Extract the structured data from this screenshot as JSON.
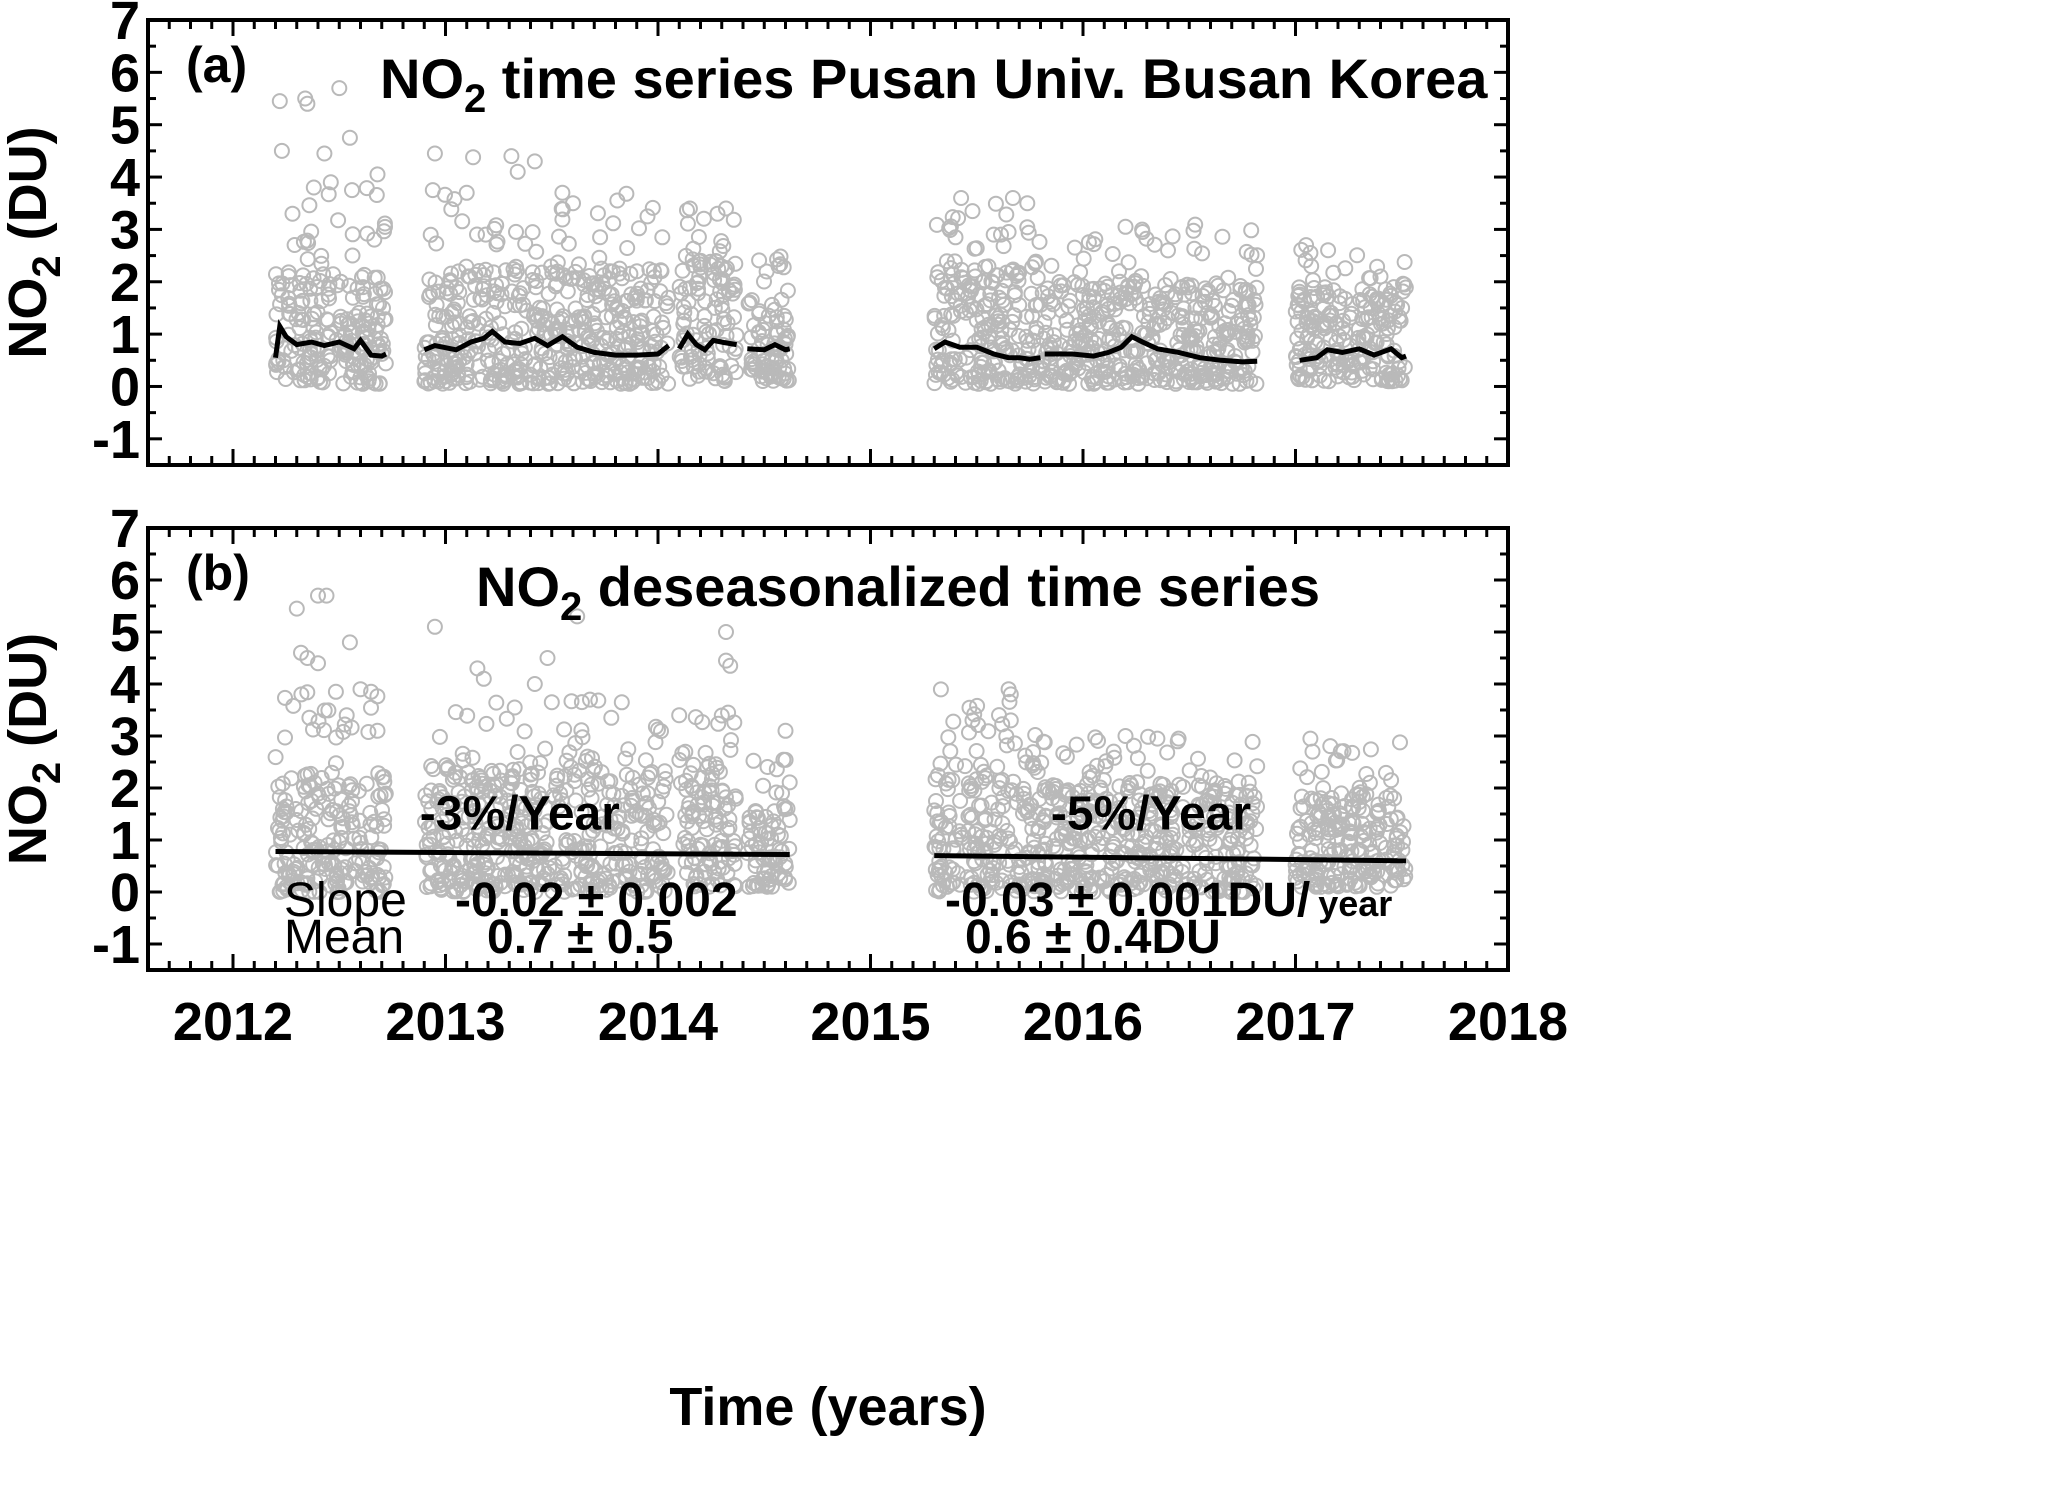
{
  "chart_data": [
    {
      "type": "scatter",
      "panel_tag": "(a)",
      "title": "NO",
      "title_sub": "2",
      "title_rest": " time series Pusan Univ.  Busan Korea",
      "ylabel": "NO",
      "ylabel_sub": "2",
      "ylabel_rest": " (DU)",
      "xlabel": "",
      "ylim": [
        -1.5,
        7
      ],
      "xlim": [
        2011.6,
        2018
      ],
      "yticks": [
        "-1",
        "0",
        "1",
        "2",
        "3",
        "4",
        "5",
        "6",
        "7"
      ],
      "xticks": [],
      "grid": false,
      "series": [
        {
          "color": "#b9b9b9",
          "marker": "open-circle",
          "segments": [
            {
              "start": 2012.2,
              "end": 2012.72,
              "low": 0.05,
              "typical": 2.2,
              "high": 3.8
            },
            {
              "start": 2012.9,
              "end": 2014.05,
              "low": 0.05,
              "typical": 2.3,
              "high": 3.7
            },
            {
              "start": 2014.1,
              "end": 2014.37,
              "low": 0.1,
              "typical": 2.4,
              "high": 3.4
            },
            {
              "start": 2014.42,
              "end": 2014.62,
              "low": 0.1,
              "typical": 1.7,
              "high": 2.5
            },
            {
              "start": 2015.3,
              "end": 2015.8,
              "low": 0.05,
              "typical": 2.3,
              "high": 3.6
            },
            {
              "start": 2015.8,
              "end": 2016.82,
              "low": 0.05,
              "typical": 2.0,
              "high": 3.1
            },
            {
              "start": 2017.0,
              "end": 2017.52,
              "low": 0.1,
              "typical": 1.9,
              "high": 2.7
            }
          ],
          "outliers": [
            [
              2012.22,
              5.45
            ],
            [
              2012.23,
              4.5
            ],
            [
              2012.34,
              5.5
            ],
            [
              2012.35,
              5.4
            ],
            [
              2012.43,
              4.45
            ],
            [
              2012.5,
              5.7
            ],
            [
              2012.55,
              4.75
            ],
            [
              2012.28,
              3.3
            ],
            [
              2012.38,
              3.8
            ],
            [
              2012.46,
              3.9
            ],
            [
              2012.56,
              3.75
            ],
            [
              2012.68,
              4.05
            ],
            [
              2012.95,
              4.45
            ],
            [
              2012.94,
              3.75
            ],
            [
              2013.1,
              3.7
            ],
            [
              2013.13,
              4.38
            ],
            [
              2013.31,
              4.4
            ],
            [
              2013.34,
              4.1
            ],
            [
              2013.42,
              4.3
            ],
            [
              2013.55,
              3.7
            ],
            [
              2013.6,
              3.5
            ],
            [
              2014.15,
              3.4
            ],
            [
              2014.32,
              3.4
            ],
            [
              2015.48,
              3.35
            ],
            [
              2015.67,
              3.6
            ],
            [
              2015.4,
              2.85
            ],
            [
              2015.58,
              2.9
            ],
            [
              2015.65,
              2.95
            ],
            [
              2016.2,
              3.05
            ],
            [
              2016.28,
              2.95
            ],
            [
              2016.4,
              2.6
            ],
            [
              2016.78,
              1.55
            ],
            [
              2017.05,
              2.7
            ],
            [
              2017.07,
              2.55
            ],
            [
              2017.4,
              2.1
            ],
            [
              2013.9,
              2.2
            ],
            [
              2014.02,
              2.85
            ],
            [
              2014.28,
              3.3
            ]
          ]
        },
        {
          "name_note": "running mean",
          "color": "#000000",
          "segments": [
            [
              [
                2012.2,
                0.55
              ],
              [
                2012.22,
                1.15
              ],
              [
                2012.25,
                0.95
              ],
              [
                2012.3,
                0.8
              ],
              [
                2012.37,
                0.85
              ],
              [
                2012.43,
                0.78
              ],
              [
                2012.5,
                0.85
              ],
              [
                2012.57,
                0.72
              ],
              [
                2012.6,
                0.88
              ],
              [
                2012.65,
                0.6
              ],
              [
                2012.7,
                0.58
              ],
              [
                2012.72,
                0.62
              ]
            ],
            [
              [
                2012.9,
                0.7
              ],
              [
                2012.95,
                0.78
              ],
              [
                2013.05,
                0.7
              ],
              [
                2013.12,
                0.85
              ],
              [
                2013.18,
                0.92
              ],
              [
                2013.22,
                1.05
              ],
              [
                2013.28,
                0.85
              ],
              [
                2013.35,
                0.82
              ],
              [
                2013.42,
                0.92
              ],
              [
                2013.48,
                0.78
              ],
              [
                2013.55,
                0.95
              ],
              [
                2013.62,
                0.75
              ],
              [
                2013.7,
                0.65
              ],
              [
                2013.8,
                0.6
              ],
              [
                2013.9,
                0.6
              ],
              [
                2014.0,
                0.62
              ],
              [
                2014.05,
                0.78
              ]
            ],
            [
              [
                2014.1,
                0.72
              ],
              [
                2014.14,
                1.0
              ],
              [
                2014.18,
                0.8
              ],
              [
                2014.22,
                0.7
              ],
              [
                2014.26,
                0.88
              ],
              [
                2014.31,
                0.84
              ],
              [
                2014.37,
                0.8
              ]
            ],
            [
              [
                2014.42,
                0.72
              ],
              [
                2014.5,
                0.7
              ],
              [
                2014.55,
                0.8
              ],
              [
                2014.6,
                0.7
              ],
              [
                2014.62,
                0.72
              ]
            ],
            [
              [
                2015.3,
                0.72
              ],
              [
                2015.35,
                0.85
              ],
              [
                2015.42,
                0.75
              ],
              [
                2015.5,
                0.75
              ],
              [
                2015.58,
                0.62
              ],
              [
                2015.65,
                0.55
              ],
              [
                2015.7,
                0.55
              ],
              [
                2015.75,
                0.52
              ],
              [
                2015.8,
                0.55
              ]
            ],
            [
              [
                2015.82,
                0.62
              ],
              [
                2015.95,
                0.62
              ],
              [
                2016.05,
                0.58
              ],
              [
                2016.12,
                0.65
              ],
              [
                2016.18,
                0.75
              ],
              [
                2016.23,
                0.95
              ],
              [
                2016.28,
                0.85
              ],
              [
                2016.35,
                0.72
              ],
              [
                2016.45,
                0.65
              ],
              [
                2016.55,
                0.55
              ],
              [
                2016.65,
                0.5
              ],
              [
                2016.75,
                0.47
              ],
              [
                2016.82,
                0.48
              ]
            ],
            [
              [
                2017.02,
                0.5
              ],
              [
                2017.1,
                0.55
              ],
              [
                2017.15,
                0.7
              ],
              [
                2017.22,
                0.65
              ],
              [
                2017.3,
                0.72
              ],
              [
                2017.37,
                0.6
              ],
              [
                2017.45,
                0.72
              ],
              [
                2017.5,
                0.55
              ],
              [
                2017.52,
                0.58
              ]
            ]
          ]
        }
      ]
    },
    {
      "type": "scatter",
      "panel_tag": "(b)",
      "title": "NO",
      "title_sub": "2",
      "title_rest": " deseasonalized time series",
      "ylabel": "NO",
      "ylabel_sub": "2",
      "ylabel_rest": " (DU)",
      "xlabel": "Time (years)",
      "ylim": [
        -1.5,
        7
      ],
      "xlim": [
        2011.6,
        2018
      ],
      "yticks": [
        "-1",
        "0",
        "1",
        "2",
        "3",
        "4",
        "5",
        "6",
        "7"
      ],
      "xticks": [
        "2012",
        "2013",
        "2014",
        "2015",
        "2016",
        "2017",
        "2018"
      ],
      "grid": false,
      "series": [
        {
          "color": "#b9b9b9",
          "marker": "open-circle",
          "segments": [
            {
              "start": 2012.2,
              "end": 2012.72,
              "low": 0.0,
              "typical": 2.3,
              "high": 3.9
            },
            {
              "start": 2012.9,
              "end": 2014.05,
              "low": 0.0,
              "typical": 2.4,
              "high": 3.7
            },
            {
              "start": 2014.1,
              "end": 2014.37,
              "low": 0.1,
              "typical": 2.5,
              "high": 3.4
            },
            {
              "start": 2014.42,
              "end": 2014.62,
              "low": 0.1,
              "typical": 1.6,
              "high": 2.6
            },
            {
              "start": 2015.3,
              "end": 2015.8,
              "low": 0.0,
              "typical": 2.5,
              "high": 3.9
            },
            {
              "start": 2015.8,
              "end": 2016.82,
              "low": 0.0,
              "typical": 2.1,
              "high": 3.0
            },
            {
              "start": 2017.0,
              "end": 2017.52,
              "low": 0.1,
              "typical": 1.9,
              "high": 2.9
            }
          ],
          "outliers": [
            [
              2012.3,
              5.45
            ],
            [
              2012.4,
              5.7
            ],
            [
              2012.44,
              5.7
            ],
            [
              2012.32,
              4.6
            ],
            [
              2012.35,
              4.5
            ],
            [
              2012.4,
              4.4
            ],
            [
              2012.55,
              4.8
            ],
            [
              2012.6,
              3.9
            ],
            [
              2012.65,
              3.85
            ],
            [
              2012.68,
              3.1
            ],
            [
              2012.95,
              5.1
            ],
            [
              2013.15,
              4.3
            ],
            [
              2013.18,
              4.1
            ],
            [
              2013.42,
              4.0
            ],
            [
              2013.48,
              4.5
            ],
            [
              2013.5,
              3.65
            ],
            [
              2013.62,
              5.3
            ],
            [
              2013.68,
              3.7
            ],
            [
              2013.78,
              3.35
            ],
            [
              2014.1,
              3.4
            ],
            [
              2014.32,
              5.0
            ],
            [
              2014.32,
              4.45
            ],
            [
              2014.34,
              4.35
            ],
            [
              2014.33,
              3.45
            ],
            [
              2014.6,
              3.1
            ],
            [
              2015.48,
              3.3
            ],
            [
              2015.65,
              3.9
            ],
            [
              2015.66,
              3.8
            ],
            [
              2015.66,
              3.3
            ],
            [
              2016.2,
              3.0
            ],
            [
              2016.35,
              2.95
            ],
            [
              2016.45,
              2.95
            ],
            [
              2016.78,
              2.1
            ],
            [
              2017.07,
              2.95
            ],
            [
              2017.08,
              2.7
            ],
            [
              2017.35,
              2.1
            ],
            [
              2017.45,
              2.15
            ]
          ]
        },
        {
          "color": "#000000",
          "trend_lines": [
            [
              [
                2012.2,
                0.78
              ],
              [
                2014.62,
                0.72
              ]
            ],
            [
              [
                2015.3,
                0.7
              ],
              [
                2017.52,
                0.6
              ]
            ]
          ]
        }
      ],
      "annotations": [
        {
          "text": "-3%/Year",
          "x": 2013.35,
          "y": 1.2
        },
        {
          "text": "-5%/Year",
          "x": 2016.32,
          "y": 1.2
        }
      ],
      "stats": {
        "slope_label": "Slope",
        "mean_label": "Mean",
        "period1": {
          "slope": "-0.02 ± 0.002",
          "mean": "0.7 ± 0.5"
        },
        "period2": {
          "slope": "-0.03 ± 0.001DU/",
          "slope_unit": "year",
          "mean": "0.6  ± 0.4DU"
        }
      }
    }
  ]
}
